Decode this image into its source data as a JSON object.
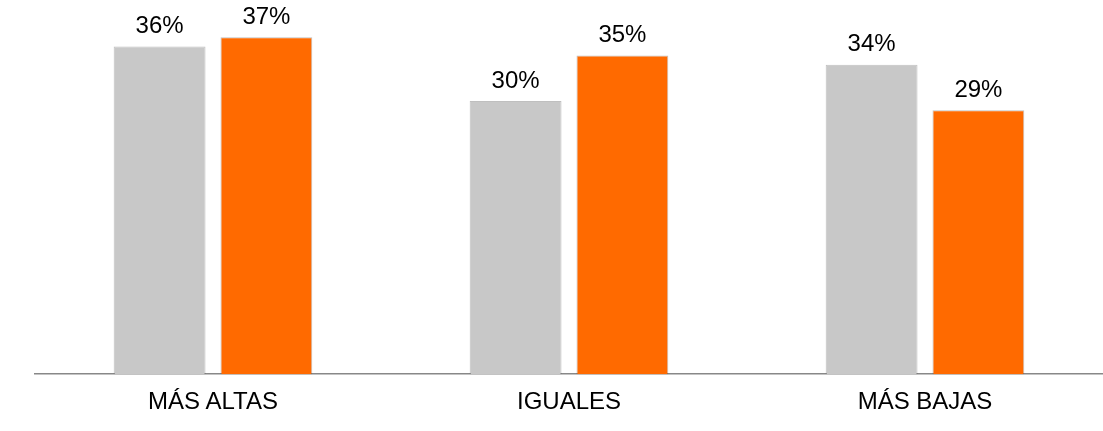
{
  "chart_data": {
    "type": "bar",
    "categories": [
      "MÁS ALTAS",
      "IGUALES",
      "MÁS BAJAS"
    ],
    "series": [
      {
        "color": "#c8c8c8",
        "values": [
          36,
          30,
          34
        ],
        "value_labels": [
          "36%",
          "30%",
          "34%"
        ]
      },
      {
        "color": "#ff6a00",
        "values": [
          37,
          35,
          29
        ],
        "value_labels": [
          "37%",
          "35%",
          "29%"
        ]
      }
    ],
    "grid": false,
    "legend": false
  }
}
